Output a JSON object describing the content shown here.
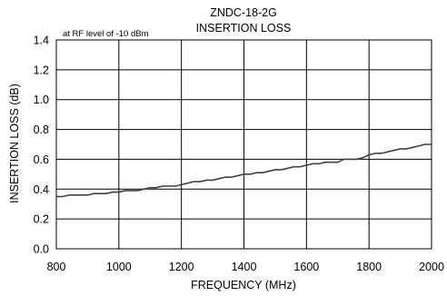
{
  "chart_data": {
    "type": "line",
    "title": "ZNDC-18-2G",
    "subtitle": "INSERTION LOSS",
    "annotation": "at RF level of -10 dBm",
    "xlabel": "FREQUENCY (MHz)",
    "ylabel": "INSERTION LOSS (dB)",
    "xlim": [
      800,
      2000
    ],
    "ylim": [
      0,
      1.4
    ],
    "x_ticks": [
      "800",
      "1000",
      "1200",
      "1400",
      "1600",
      "1800",
      "2000"
    ],
    "y_ticks": [
      "0.0",
      "0.2",
      "0.4",
      "0.6",
      "0.8",
      "1.0",
      "1.2",
      "1.4"
    ],
    "grid": true,
    "line_color": "#404040",
    "series": [
      {
        "x": [
          800,
          820,
          840,
          860,
          880,
          900,
          920,
          940,
          960,
          980,
          1000,
          1020,
          1040,
          1060,
          1080,
          1100,
          1120,
          1140,
          1160,
          1180,
          1200,
          1220,
          1240,
          1260,
          1280,
          1300,
          1320,
          1340,
          1360,
          1380,
          1400,
          1420,
          1440,
          1460,
          1480,
          1500,
          1520,
          1540,
          1560,
          1580,
          1600,
          1620,
          1640,
          1660,
          1680,
          1700,
          1720,
          1740,
          1760,
          1780,
          1800,
          1820,
          1840,
          1860,
          1880,
          1900,
          1920,
          1940,
          1960,
          1980,
          2000
        ],
        "y": [
          0.35,
          0.35,
          0.36,
          0.36,
          0.36,
          0.36,
          0.37,
          0.37,
          0.37,
          0.38,
          0.38,
          0.39,
          0.39,
          0.39,
          0.4,
          0.41,
          0.41,
          0.42,
          0.42,
          0.42,
          0.43,
          0.44,
          0.45,
          0.45,
          0.46,
          0.46,
          0.47,
          0.48,
          0.48,
          0.49,
          0.5,
          0.5,
          0.51,
          0.51,
          0.52,
          0.53,
          0.53,
          0.54,
          0.55,
          0.55,
          0.56,
          0.57,
          0.57,
          0.58,
          0.58,
          0.58,
          0.6,
          0.6,
          0.6,
          0.61,
          0.63,
          0.64,
          0.64,
          0.65,
          0.66,
          0.67,
          0.67,
          0.68,
          0.69,
          0.7,
          0.7
        ]
      }
    ]
  }
}
